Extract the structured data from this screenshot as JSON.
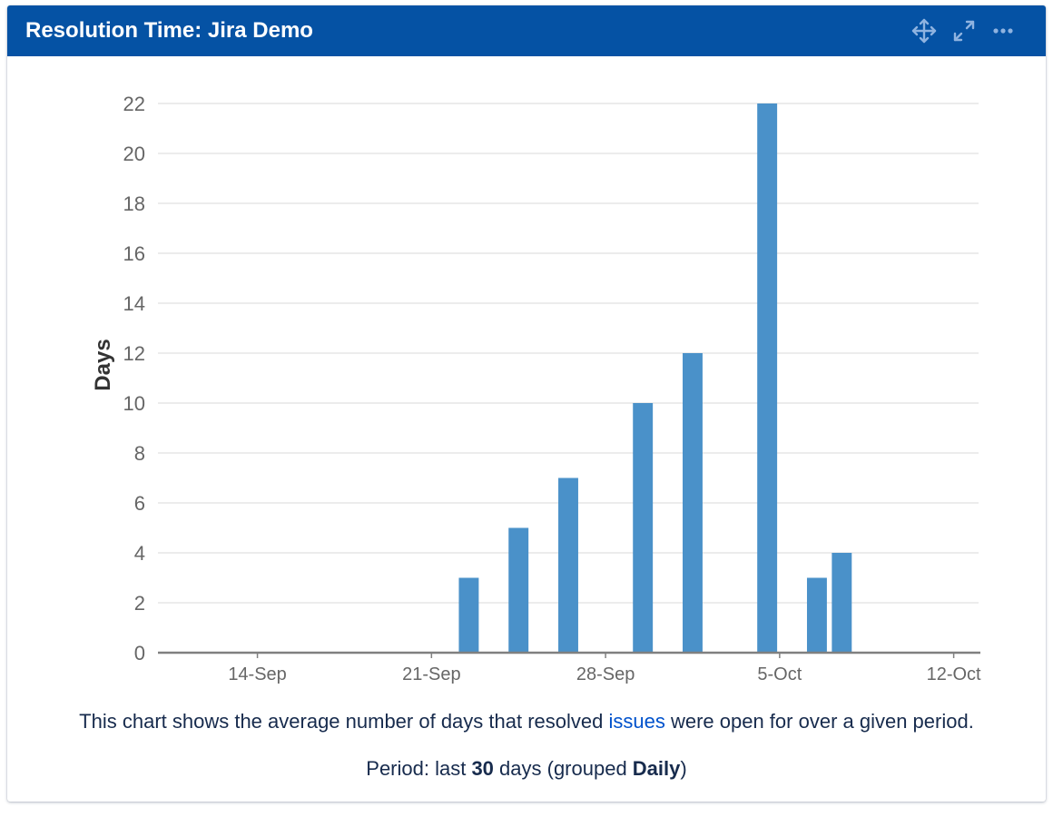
{
  "gadget": {
    "title": "Resolution Time: Jira Demo",
    "icons": [
      "move-icon",
      "expand-icon",
      "more-icon"
    ]
  },
  "colors": {
    "header": "#0552a4",
    "bar": "#4a91c9",
    "grid": "#e6e6e6",
    "axis": "#808080",
    "link": "#0052cc"
  },
  "chart_data": {
    "type": "bar",
    "title": "",
    "xlabel": "",
    "ylabel": "Days",
    "ylim": [
      0,
      22
    ],
    "yticks": [
      0,
      2,
      4,
      6,
      8,
      10,
      12,
      14,
      16,
      18,
      20,
      22
    ],
    "x_range": [
      "2019-09-10",
      "2019-10-13"
    ],
    "xticks": [
      {
        "date": "2019-09-14",
        "label": "14-Sep"
      },
      {
        "date": "2019-09-21",
        "label": "21-Sep"
      },
      {
        "date": "2019-09-28",
        "label": "28-Sep"
      },
      {
        "date": "2019-10-05",
        "label": "5-Oct"
      },
      {
        "date": "2019-10-12",
        "label": "12-Oct"
      }
    ],
    "grid": true,
    "legend": "none",
    "series": [
      {
        "points": [
          {
            "date": "2019-09-22",
            "value": 3
          },
          {
            "date": "2019-09-24",
            "value": 5
          },
          {
            "date": "2019-09-26",
            "value": 7
          },
          {
            "date": "2019-09-29",
            "value": 10
          },
          {
            "date": "2019-10-01",
            "value": 12
          },
          {
            "date": "2019-10-04",
            "value": 22
          },
          {
            "date": "2019-10-06",
            "value": 3
          },
          {
            "date": "2019-10-07",
            "value": 4
          }
        ]
      }
    ]
  },
  "description": {
    "before": "This chart shows the average number of days that resolved ",
    "link": "issues",
    "after": " were open for over a given period."
  },
  "period": {
    "prefix": "Period: last ",
    "days": "30",
    "middle": " days (grouped ",
    "grouping": "Daily",
    "suffix": ")"
  }
}
